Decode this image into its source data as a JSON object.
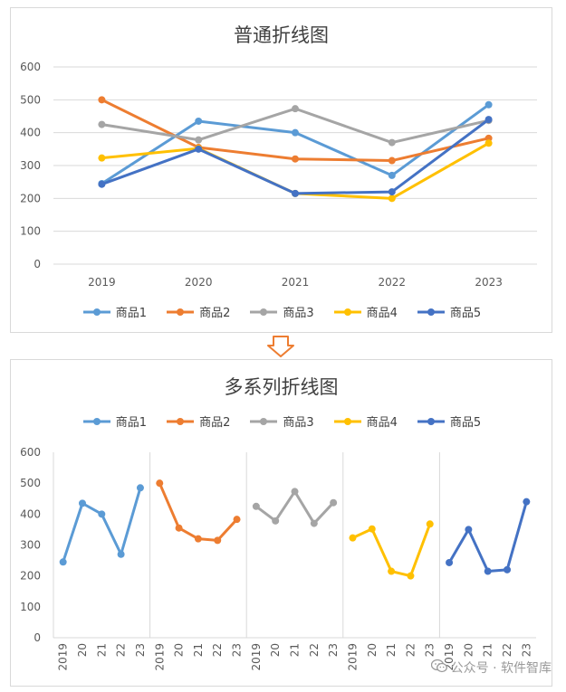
{
  "chart_data": [
    {
      "type": "line",
      "title": "普通折线图",
      "categories": [
        "2019",
        "2020",
        "2021",
        "2022",
        "2023"
      ],
      "ylim": [
        0,
        600
      ],
      "yticks": [
        "0",
        "100",
        "200",
        "300",
        "400",
        "500",
        "600"
      ],
      "grid": true,
      "legend": "bottom",
      "series": [
        {
          "name": "商品1",
          "color": "#5B9BD5",
          "values": [
            245,
            435,
            400,
            270,
            485
          ]
        },
        {
          "name": "商品2",
          "color": "#ED7D31",
          "values": [
            500,
            355,
            320,
            315,
            383
          ]
        },
        {
          "name": "商品3",
          "color": "#A5A5A5",
          "values": [
            425,
            378,
            473,
            370,
            437
          ]
        },
        {
          "name": "商品4",
          "color": "#FFC000",
          "values": [
            323,
            352,
            215,
            200,
            368
          ]
        },
        {
          "name": "商品5",
          "color": "#4472C4",
          "values": [
            243,
            350,
            215,
            220,
            440
          ]
        }
      ]
    },
    {
      "type": "line",
      "title": "多系列折线图",
      "categories": [
        "2019",
        "20",
        "21",
        "22",
        "23"
      ],
      "ylim": [
        0,
        600
      ],
      "yticks": [
        "0",
        "100",
        "200",
        "300",
        "400",
        "500",
        "600"
      ],
      "grid": false,
      "legend": "top",
      "layout": "panels per series",
      "series": [
        {
          "name": "商品1",
          "color": "#5B9BD5",
          "values": [
            245,
            435,
            400,
            270,
            485
          ]
        },
        {
          "name": "商品2",
          "color": "#ED7D31",
          "values": [
            500,
            355,
            320,
            315,
            383
          ]
        },
        {
          "name": "商品3",
          "color": "#A5A5A5",
          "values": [
            425,
            378,
            473,
            370,
            437
          ]
        },
        {
          "name": "商品4",
          "color": "#FFC000",
          "values": [
            323,
            352,
            215,
            200,
            368
          ]
        },
        {
          "name": "商品5",
          "color": "#4472C4",
          "values": [
            243,
            350,
            215,
            220,
            440
          ]
        }
      ]
    }
  ],
  "arrow_icon": "down-arrow-icon",
  "watermark": {
    "icon": "wechat-icon",
    "text": "公众号 · 软件智库"
  }
}
